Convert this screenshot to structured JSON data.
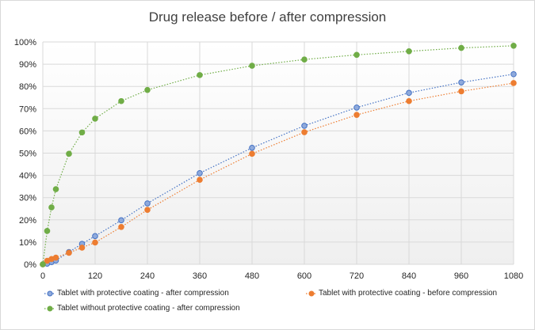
{
  "chart_data": {
    "type": "line",
    "title": "Drug release before / after compression",
    "xlabel": "",
    "ylabel": "",
    "xlim": [
      0,
      1080
    ],
    "ylim": [
      0,
      1
    ],
    "x_ticks": [
      0,
      120,
      240,
      360,
      480,
      600,
      720,
      840,
      960,
      1080
    ],
    "y_ticks": [
      0,
      0.1,
      0.2,
      0.3,
      0.4,
      0.5,
      0.6,
      0.7,
      0.8,
      0.9,
      1.0
    ],
    "y_tick_labels": [
      "0%",
      "10%",
      "20%",
      "30%",
      "40%",
      "50%",
      "60%",
      "70%",
      "80%",
      "90%",
      "100%"
    ],
    "grid": true,
    "legend_position": "bottom",
    "series": [
      {
        "name": "Tablet with protective coating -  after compression",
        "color": "#4472c4",
        "marker_fill": "#8faadc",
        "x": [
          0,
          10,
          20,
          30,
          60,
          90,
          120,
          180,
          240,
          360,
          480,
          600,
          720,
          840,
          960,
          1080
        ],
        "y": [
          0.0,
          0.003,
          0.01,
          0.017,
          0.055,
          0.092,
          0.127,
          0.198,
          0.274,
          0.41,
          0.524,
          0.623,
          0.705,
          0.771,
          0.818,
          0.855
        ]
      },
      {
        "name": "Tablet with protective coating -  before compression",
        "color": "#ed7d31",
        "marker_fill": "#ed7d31",
        "x": [
          0,
          10,
          20,
          30,
          60,
          90,
          120,
          180,
          240,
          360,
          480,
          600,
          720,
          840,
          960,
          1080
        ],
        "y": [
          0.0,
          0.016,
          0.024,
          0.03,
          0.052,
          0.075,
          0.098,
          0.168,
          0.245,
          0.38,
          0.497,
          0.594,
          0.672,
          0.734,
          0.778,
          0.815
        ]
      },
      {
        "name": "Tablet without protective coating -  after compression",
        "color": "#70ad47",
        "marker_fill": "#70ad47",
        "x": [
          0,
          10,
          20,
          30,
          60,
          90,
          120,
          180,
          240,
          360,
          480,
          600,
          720,
          840,
          960,
          1080
        ],
        "y": [
          0.0,
          0.15,
          0.256,
          0.338,
          0.497,
          0.593,
          0.655,
          0.734,
          0.784,
          0.851,
          0.893,
          0.921,
          0.942,
          0.958,
          0.973,
          0.983
        ]
      }
    ]
  }
}
